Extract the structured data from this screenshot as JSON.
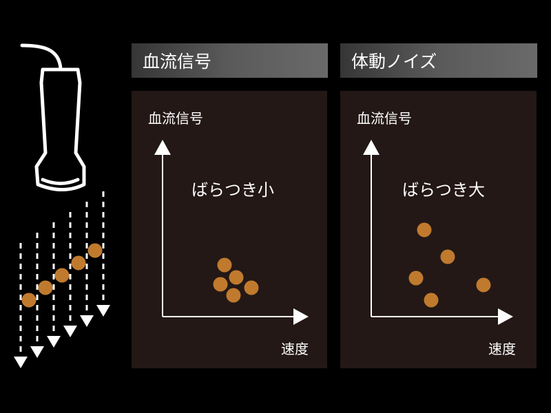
{
  "left_panel": {
    "header": "血流信号",
    "y_axis_label": "血流信号",
    "x_axis_label": "速度",
    "annotation": "ばらつき小"
  },
  "right_panel": {
    "header": "体動ノイズ",
    "y_axis_label": "血流信号",
    "x_axis_label": "速度",
    "annotation": "ばらつき大"
  },
  "colors": {
    "dot": "#c07a2e",
    "panel_bg": "#231816",
    "background": "#000000"
  },
  "icons": [
    "ultrasound-probe-icon",
    "dashed-arrow-icon"
  ]
}
